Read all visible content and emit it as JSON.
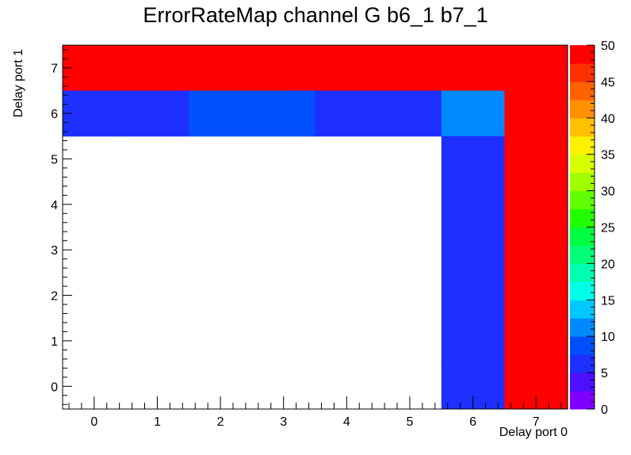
{
  "chart_data": {
    "type": "heatmap",
    "title": "ErrorRateMap channel G b6_1 b7_1",
    "xlabel": "Delay port 0",
    "ylabel": "Delay port 1",
    "x_categories": [
      "0",
      "1",
      "2",
      "3",
      "4",
      "5",
      "6",
      "7"
    ],
    "y_categories": [
      "0",
      "1",
      "2",
      "3",
      "4",
      "5",
      "6",
      "7"
    ],
    "xlim": [
      -0.5,
      7.5
    ],
    "ylim": [
      -0.5,
      7.5
    ],
    "zlim": [
      0,
      50
    ],
    "colorbar_ticks": [
      "0",
      "5",
      "10",
      "15",
      "20",
      "25",
      "30",
      "35",
      "40",
      "45",
      "50"
    ],
    "palette": [
      "#7f00ff",
      "#4c0fff",
      "#1e30ff",
      "#0050ff",
      "#008aff",
      "#00c8ff",
      "#00ffe8",
      "#00ffb0",
      "#00ff78",
      "#00ff40",
      "#22ff00",
      "#60ff00",
      "#a0ff00",
      "#d8ff00",
      "#fff000",
      "#ffc000",
      "#ff9000",
      "#ff6000",
      "#ff3000",
      "#ff0000"
    ],
    "cells": [
      {
        "x": 0,
        "y": 7,
        "z": 50
      },
      {
        "x": 1,
        "y": 7,
        "z": 50
      },
      {
        "x": 2,
        "y": 7,
        "z": 50
      },
      {
        "x": 3,
        "y": 7,
        "z": 50
      },
      {
        "x": 4,
        "y": 7,
        "z": 50
      },
      {
        "x": 5,
        "y": 7,
        "z": 50
      },
      {
        "x": 6,
        "y": 7,
        "z": 50
      },
      {
        "x": 7,
        "y": 7,
        "z": 50
      },
      {
        "x": 0,
        "y": 6,
        "z": 6
      },
      {
        "x": 1,
        "y": 6,
        "z": 6
      },
      {
        "x": 2,
        "y": 6,
        "z": 8
      },
      {
        "x": 3,
        "y": 6,
        "z": 8
      },
      {
        "x": 4,
        "y": 6,
        "z": 6
      },
      {
        "x": 5,
        "y": 6,
        "z": 6
      },
      {
        "x": 6,
        "y": 6,
        "z": 12
      },
      {
        "x": 7,
        "y": 6,
        "z": 50
      },
      {
        "x": 6,
        "y": 5,
        "z": 6
      },
      {
        "x": 7,
        "y": 5,
        "z": 50
      },
      {
        "x": 6,
        "y": 4,
        "z": 6
      },
      {
        "x": 7,
        "y": 4,
        "z": 50
      },
      {
        "x": 6,
        "y": 3,
        "z": 6
      },
      {
        "x": 7,
        "y": 3,
        "z": 50
      },
      {
        "x": 6,
        "y": 2,
        "z": 6
      },
      {
        "x": 7,
        "y": 2,
        "z": 50
      },
      {
        "x": 6,
        "y": 1,
        "z": 6
      },
      {
        "x": 7,
        "y": 1,
        "z": 50
      },
      {
        "x": 6,
        "y": 0,
        "z": 6
      },
      {
        "x": 7,
        "y": 0,
        "z": 50
      }
    ]
  }
}
